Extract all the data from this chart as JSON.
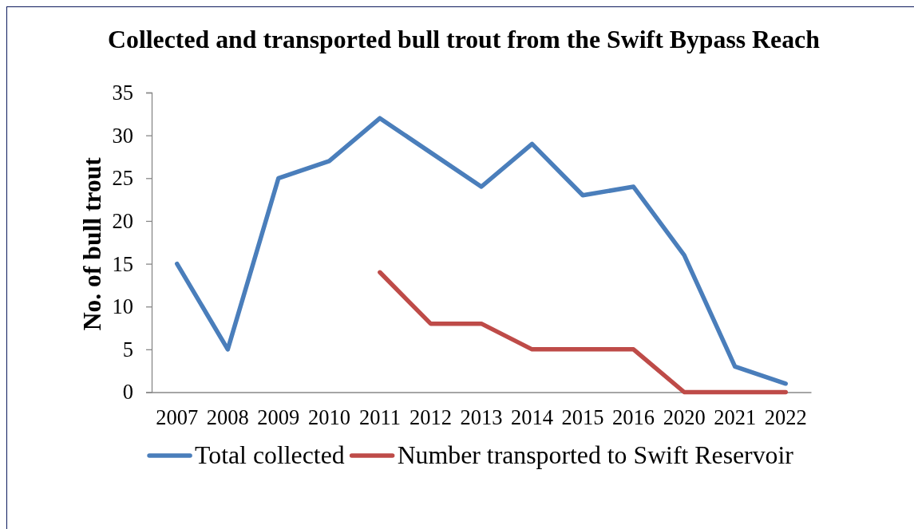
{
  "chart_data": {
    "type": "line",
    "title": "Collected and transported bull trout from the Swift Bypass Reach",
    "ylabel": "No. of bull trout",
    "categories": [
      "2007",
      "2008",
      "2009",
      "2010",
      "2011",
      "2012",
      "2013",
      "2014",
      "2015",
      "2016",
      "2020",
      "2021",
      "2022"
    ],
    "series": [
      {
        "name": "Total collected",
        "color": "#4a7ebb",
        "values": [
          15,
          5,
          25,
          27,
          32,
          28,
          24,
          29,
          23,
          24,
          16,
          3,
          1
        ]
      },
      {
        "name": "Number transported to Swift Reservoir",
        "color": "#be4b48",
        "values": [
          null,
          null,
          null,
          null,
          14,
          8,
          8,
          5,
          5,
          5,
          0,
          0,
          0
        ]
      }
    ],
    "ylim": [
      0,
      35
    ],
    "yticks": [
      0,
      5,
      10,
      15,
      20,
      25,
      30,
      35
    ],
    "grid": false,
    "legend": "bottom",
    "marker": "none",
    "line_style": "solid"
  }
}
